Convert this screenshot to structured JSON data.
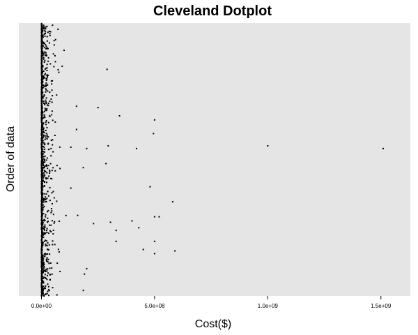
{
  "chart_data": {
    "type": "scatter",
    "title": "Cleveland Dotplot",
    "xlabel": "Cost($)",
    "ylabel": "Order of data",
    "xlim": [
      -100000000,
      1630000000
    ],
    "ylim": [
      0,
      1000
    ],
    "x_ticks": [
      {
        "value": 0,
        "label": "0.0e+00"
      },
      {
        "value": 500000000,
        "label": "5.0e+08"
      },
      {
        "value": 1000000000,
        "label": "1.0e+09"
      },
      {
        "value": 1500000000,
        "label": "1.5e+09"
      }
    ],
    "y_ticks": [],
    "grid": false,
    "background": "#e5e5e5",
    "point_color": "#000000",
    "notable_points": [
      {
        "x": 290000000,
        "y": 830
      },
      {
        "x": 250000000,
        "y": 690
      },
      {
        "x": 155000000,
        "y": 695
      },
      {
        "x": 345000000,
        "y": 660
      },
      {
        "x": 500000000,
        "y": 645
      },
      {
        "x": 495000000,
        "y": 595
      },
      {
        "x": 155000000,
        "y": 610
      },
      {
        "x": 130000000,
        "y": 545
      },
      {
        "x": 200000000,
        "y": 540
      },
      {
        "x": 295000000,
        "y": 550
      },
      {
        "x": 420000000,
        "y": 540
      },
      {
        "x": 1000000000,
        "y": 550
      },
      {
        "x": 1510000000,
        "y": 540
      },
      {
        "x": 285000000,
        "y": 485
      },
      {
        "x": 185000000,
        "y": 470
      },
      {
        "x": 130000000,
        "y": 395
      },
      {
        "x": 480000000,
        "y": 400
      },
      {
        "x": 580000000,
        "y": 345
      },
      {
        "x": 500000000,
        "y": 290
      },
      {
        "x": 520000000,
        "y": 290
      },
      {
        "x": 400000000,
        "y": 275
      },
      {
        "x": 430000000,
        "y": 250
      },
      {
        "x": 330000000,
        "y": 240
      },
      {
        "x": 305000000,
        "y": 270
      },
      {
        "x": 160000000,
        "y": 295
      },
      {
        "x": 230000000,
        "y": 265
      },
      {
        "x": 590000000,
        "y": 165
      },
      {
        "x": 500000000,
        "y": 155
      },
      {
        "x": 500000000,
        "y": 200
      },
      {
        "x": 450000000,
        "y": 170
      },
      {
        "x": 330000000,
        "y": 200
      },
      {
        "x": 200000000,
        "y": 100
      },
      {
        "x": 190000000,
        "y": 80
      },
      {
        "x": 185000000,
        "y": 20
      },
      {
        "x": 70000000,
        "y": 120
      },
      {
        "x": 100000000,
        "y": 900
      },
      {
        "x": 60000000,
        "y": 880
      }
    ],
    "cluster": {
      "description_free": true,
      "count": 650,
      "seed": 7,
      "x_scale": 18000000,
      "x_max": 150000000
    }
  }
}
